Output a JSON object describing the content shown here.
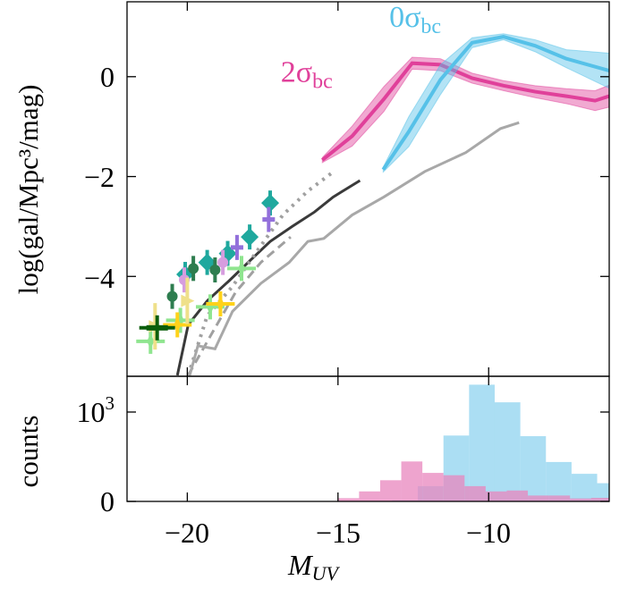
{
  "chart_data": [
    {
      "type": "line",
      "panel": "top",
      "ylabel": "log(gal/Mpc³/mag)",
      "xlim": [
        -22,
        -6
      ],
      "ylim": [
        -6,
        1.5
      ],
      "yticks": [
        0,
        -2,
        -4
      ],
      "ytick_labels": [
        "0",
        "−2",
        "−4"
      ],
      "xticks": [
        -20,
        -15,
        -10
      ],
      "annotations": [
        {
          "text": "0σ",
          "sub": "bc",
          "color": "#56c1e8",
          "x": -13.3,
          "y": 1.0
        },
        {
          "text": "2σ",
          "sub": "bc",
          "color": "#e0409a",
          "x": -16.9,
          "y": -0.1
        }
      ],
      "series": [
        {
          "style": "band",
          "color": "#e0409a",
          "x": [
            -15.52,
            -14.53,
            -13.48,
            -12.54,
            -11.6,
            -10.55,
            -9.51,
            -8.46,
            -7.42,
            -6.47,
            -6.0
          ],
          "y": [
            -1.67,
            -1.19,
            -0.45,
            0.27,
            0.24,
            -0.03,
            -0.18,
            -0.3,
            -0.39,
            -0.48,
            -0.39
          ],
          "err": [
            0.05,
            0.2,
            0.25,
            0.12,
            0.12,
            0.1,
            0.1,
            0.12,
            0.15,
            0.2,
            0.22
          ]
        },
        {
          "style": "band",
          "color": "#56c1e8",
          "x": [
            -13.5,
            -12.65,
            -11.6,
            -10.55,
            -9.51,
            -8.46,
            -7.42,
            -6.0
          ],
          "y": [
            -1.86,
            -1.1,
            -0.06,
            0.68,
            0.8,
            0.62,
            0.36,
            0.12
          ],
          "err": [
            0.05,
            0.3,
            0.3,
            0.1,
            0.06,
            0.12,
            0.18,
            0.35
          ]
        },
        {
          "style": "solid",
          "color": "#3a3a3a",
          "x": [
            -20.33,
            -19.97,
            -19.34,
            -18.6,
            -17.88,
            -17.25,
            -16.52,
            -15.78,
            -15.16,
            -14.27
          ],
          "y": [
            -5.98,
            -4.97,
            -4.49,
            -4.08,
            -3.66,
            -3.3,
            -3.0,
            -2.71,
            -2.41,
            -2.08
          ]
        },
        {
          "style": "dotted",
          "color": "#a0a0a0",
          "x": [
            -19.97,
            -19.34,
            -18.5,
            -17.67,
            -16.83,
            -16.0,
            -15.1
          ],
          "y": [
            -5.98,
            -4.79,
            -4.2,
            -3.48,
            -2.77,
            -2.29,
            -1.88
          ]
        },
        {
          "style": "dashed",
          "color": "#a0a0a0",
          "x": [
            -19.97,
            -19.24,
            -18.4,
            -17.56,
            -16.57
          ],
          "y": [
            -5.98,
            -5.2,
            -4.32,
            -3.72,
            -3.21
          ]
        },
        {
          "style": "solid-light",
          "color": "#a8a8a8",
          "x": [
            -19.92,
            -19.65,
            -19.08,
            -18.5,
            -17.56,
            -16.62,
            -16.0,
            -15.47,
            -14.53,
            -13.48,
            -12.12,
            -10.76,
            -9.61,
            -8.99
          ],
          "y": [
            -5.98,
            -5.39,
            -5.45,
            -4.7,
            -4.14,
            -3.72,
            -3.3,
            -3.24,
            -2.77,
            -2.41,
            -1.9,
            -1.52,
            -1.04,
            -0.92
          ]
        }
      ],
      "observations": [
        {
          "marker": "diamond",
          "color": "#1fa89e",
          "points": [
            [
              -17.25,
              -2.53
            ],
            [
              -17.93,
              -3.21
            ],
            [
              -18.66,
              -3.54
            ],
            [
              -19.34,
              -3.72
            ],
            [
              -20.07,
              -3.96
            ]
          ]
        },
        {
          "marker": "circle",
          "color": "#2e7d4f",
          "points": [
            [
              -19.8,
              -3.84
            ],
            [
              -19.08,
              -3.87
            ],
            [
              -20.5,
              -4.4
            ]
          ]
        },
        {
          "marker": "plus",
          "color": "#9370db",
          "points": [
            [
              -17.3,
              -2.86
            ],
            [
              -18.35,
              -3.42
            ]
          ]
        },
        {
          "marker": "pentagon",
          "color": "#d69ddf",
          "points": [
            [
              -18.82,
              -3.72
            ],
            [
              -20.1,
              -4.07
            ]
          ]
        },
        {
          "marker": "star",
          "color": "#8fe58f",
          "points": [
            [
              -18.2,
              -3.84
            ],
            [
              -19.24,
              -4.61
            ],
            [
              -21.22,
              -5.3
            ],
            [
              -20.23,
              -4.88
            ]
          ]
        },
        {
          "marker": "star",
          "color": "#ffd21a",
          "points": [
            [
              -18.9,
              -4.55
            ],
            [
              -20.33,
              -4.97
            ]
          ]
        },
        {
          "marker": "triangle",
          "color": "#efe08a",
          "points": [
            [
              -20.0,
              -4.49
            ],
            [
              -21.07,
              -5.0
            ]
          ]
        },
        {
          "marker": "bar",
          "color": "#0b5e0b",
          "points": [
            [
              -21.0,
              -5.03
            ]
          ]
        }
      ]
    },
    {
      "type": "histogram",
      "panel": "bottom",
      "xlabel": "M_UV",
      "xlabel_main": "M",
      "xlabel_sub": "UV",
      "ylabel": "counts",
      "xlim": [
        -22,
        -6
      ],
      "ylim": [
        0,
        1400
      ],
      "xticks": [
        -20,
        -15,
        -10
      ],
      "xtick_labels": [
        "−20",
        "−15",
        "−10"
      ],
      "ytick_labels": [
        {
          "value": 0,
          "base": "0",
          "exp": ""
        },
        {
          "value": 1000,
          "base": "10",
          "exp": "3"
        }
      ],
      "series": [
        {
          "color": "#8fd3ef",
          "edges": [
            -13.2,
            -12.35,
            -11.5,
            -10.65,
            -9.8,
            -8.95,
            -8.1,
            -7.25,
            -6.4,
            -6.0
          ],
          "counts": [
            13,
            171,
            737,
            1306,
            1109,
            730,
            441,
            309,
            204
          ]
        },
        {
          "color": "#e886bd",
          "edges": [
            -15,
            -14.3,
            -13.6,
            -12.9,
            -12.2,
            -11.5,
            -10.8,
            -10.1,
            -9.4,
            -8.7,
            -8.0,
            -7.3,
            -6.6,
            -6.0
          ],
          "counts": [
            36,
            112,
            237,
            447,
            319,
            293,
            171,
            112,
            122,
            66,
            66,
            33,
            40
          ]
        }
      ]
    }
  ]
}
